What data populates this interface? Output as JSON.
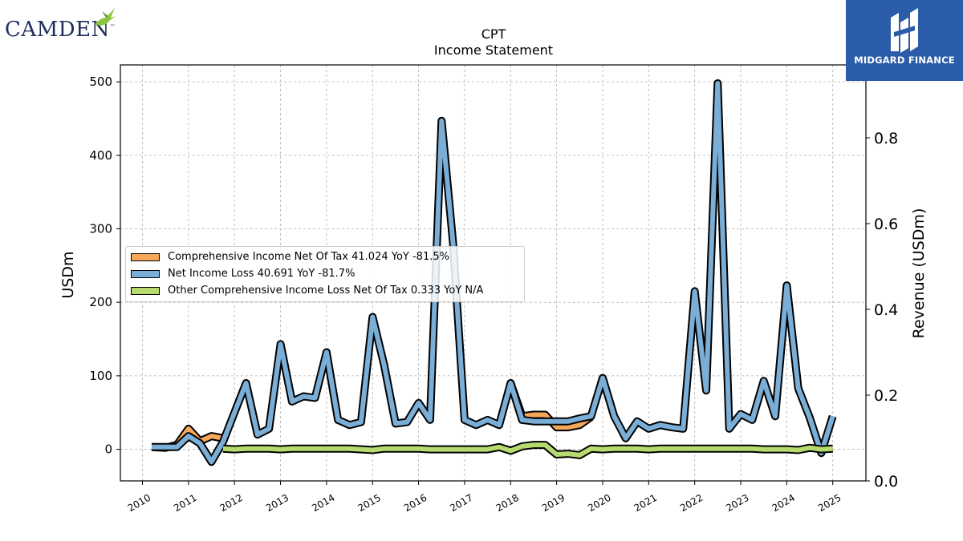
{
  "branding": {
    "left_logo_text": "CAMDEN",
    "left_logo_tm": "™",
    "right_logo_text": "MIDGARD FINANCE"
  },
  "chart_data": {
    "type": "line",
    "title": "CPT",
    "subtitle": "Income Statement",
    "ylabel": "USDm",
    "y2label": "Revenue (USDm)",
    "ylim": [
      -43,
      523
    ],
    "y2lim": [
      0,
      0.97
    ],
    "yticks": [
      0,
      100,
      200,
      300,
      400,
      500
    ],
    "y2ticks": [
      "0.0",
      "0.2",
      "0.4",
      "0.6",
      "0.8"
    ],
    "xlim": [
      2009.52,
      2025.72
    ],
    "xticks": [
      2010,
      2011,
      2012,
      2013,
      2014,
      2015,
      2016,
      2017,
      2018,
      2019,
      2020,
      2021,
      2022,
      2023,
      2024,
      2025
    ],
    "grid": true,
    "legend_position": "center-left",
    "x": [
      2010.2,
      2010.5,
      2010.75,
      2011.0,
      2011.25,
      2011.5,
      2011.75,
      2012.0,
      2012.25,
      2012.5,
      2012.75,
      2013.0,
      2013.25,
      2013.5,
      2013.75,
      2014.0,
      2014.25,
      2014.5,
      2014.75,
      2015.0,
      2015.25,
      2015.5,
      2015.75,
      2016.0,
      2016.25,
      2016.5,
      2016.75,
      2017.0,
      2017.25,
      2017.5,
      2017.75,
      2018.0,
      2018.25,
      2018.5,
      2018.75,
      2019.0,
      2019.25,
      2019.5,
      2019.75,
      2020.0,
      2020.25,
      2020.5,
      2020.75,
      2021.0,
      2021.25,
      2021.5,
      2021.75,
      2022.0,
      2022.25,
      2022.5,
      2022.75,
      2023.0,
      2023.25,
      2023.5,
      2023.75,
      2024.0,
      2024.25,
      2024.5,
      2024.75,
      2025.0
    ],
    "series": [
      {
        "name": "Comprehensive Income Net Of Tax",
        "legend": "Comprehensive Income Net Of Tax  41.024 YoY -81.5%",
        "color": "#f5a85a",
        "values": [
          3,
          2,
          6,
          28,
          11,
          18,
          15,
          null,
          null,
          null,
          null,
          null,
          null,
          null,
          null,
          null,
          null,
          null,
          null,
          null,
          null,
          null,
          null,
          null,
          null,
          null,
          null,
          null,
          null,
          null,
          null,
          90,
          45,
          47,
          47,
          30,
          30,
          33,
          44,
          null,
          null,
          null,
          null,
          null,
          null,
          null,
          null,
          null,
          null,
          null,
          null,
          null,
          null,
          null,
          null,
          null,
          null,
          null,
          null,
          null
        ]
      },
      {
        "name": "Net Income Loss",
        "legend": "Net Income Loss  40.691 YoY -81.7%",
        "color": "#7aaed6",
        "values": [
          3,
          3,
          3,
          18,
          8,
          -17,
          10,
          50,
          90,
          20,
          28,
          143,
          65,
          72,
          70,
          132,
          40,
          33,
          37,
          180,
          115,
          35,
          37,
          63,
          40,
          447,
          280,
          40,
          33,
          40,
          33,
          90,
          40,
          38,
          38,
          38,
          38,
          42,
          45,
          97,
          45,
          15,
          38,
          28,
          33,
          30,
          28,
          215,
          80,
          498,
          28,
          48,
          40,
          93,
          45,
          223,
          83,
          43,
          -5,
          45
        ]
      },
      {
        "name": "Other Comprehensive Income Loss Net Of Tax",
        "legend": "Other Comprehensive Income Loss Net Of Tax  0.333 YoY N/A",
        "color": "#b6da6e",
        "values": [
          null,
          null,
          null,
          null,
          null,
          null,
          1,
          0,
          1,
          1,
          1,
          0,
          1,
          1,
          1,
          1,
          1,
          1,
          0,
          -1,
          1,
          1,
          1,
          1,
          0,
          0,
          0,
          0,
          0,
          0,
          3,
          -2,
          4,
          6,
          6,
          -7,
          -6,
          -8,
          1,
          0,
          1,
          1,
          1,
          0,
          1,
          1,
          1,
          1,
          1,
          1,
          1,
          1,
          1,
          0,
          0,
          0,
          -1,
          2,
          0,
          1
        ]
      }
    ]
  }
}
